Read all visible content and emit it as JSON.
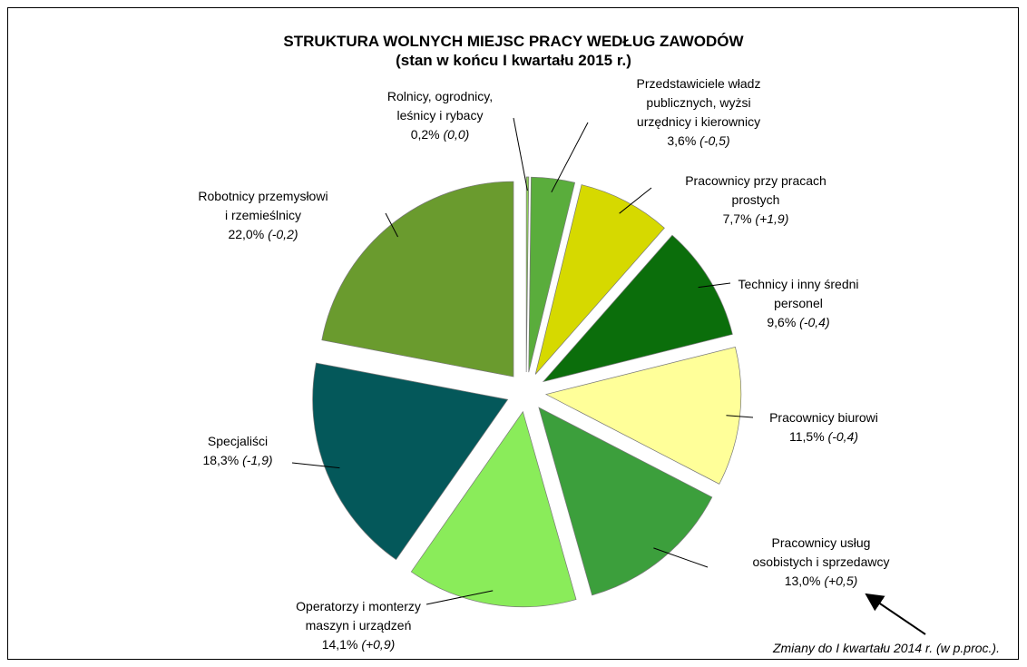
{
  "chart_data": {
    "type": "pie",
    "title": "STRUKTURA WOLNYCH MIEJSC PRACY WEDŁUG ZAWODÓW",
    "subtitle": "(stan w końcu I kwartału 2015 r.)",
    "categories": [
      "Rolnicy, ogrodnicy,\nleśnicy i rybacy",
      "Przedstawiciele władz\npublicznych, wyżsi\nurzędnicy i kierownicy",
      "Pracownicy przy pracach\nprostych",
      "Technicy i inny średni\npersonel",
      "Pracownicy biurowi",
      "Pracownicy usług\nosobistych i sprzedawcy",
      "Operatorzy i monterzy\nmaszyn i urządzeń",
      "Specjaliści",
      "Robotnicy przemysłowi\ni rzemieślnicy"
    ],
    "values": [
      0.2,
      3.6,
      7.7,
      9.6,
      11.5,
      13.0,
      14.1,
      18.3,
      22.0
    ],
    "value_labels": [
      "0,2%",
      "3,6%",
      "7,7%",
      "9,6%",
      "11,5%",
      "13,0%",
      "14,1%",
      "18,3%",
      "22,0%"
    ],
    "changes": [
      "(0,0)",
      "(-0,5)",
      "(+1,9)",
      "(-0,4)",
      "(-0,4)",
      "(+0,5)",
      "(+0,9)",
      "(-1,9)",
      "(-0,2)"
    ],
    "colors": [
      "#8fcf5a",
      "#5aad3c",
      "#d6d900",
      "#0b6e0b",
      "#ffff99",
      "#3c9f3c",
      "#8aec5a",
      "#04585a",
      "#6a9b2e"
    ],
    "note": "Zmiany do I kwartału 2014 r. (w p.proc.)."
  }
}
